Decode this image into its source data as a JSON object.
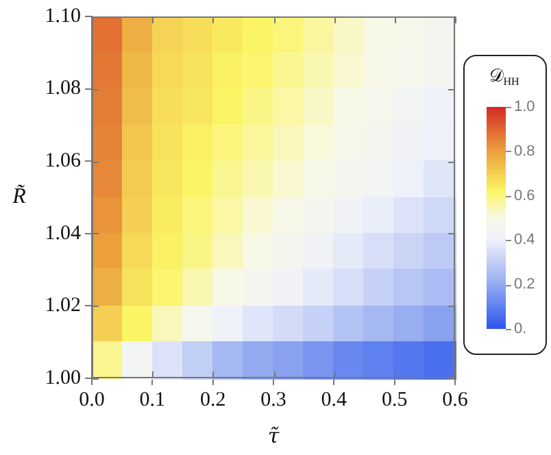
{
  "chart_data": {
    "type": "heatmap",
    "xlabel": "τ̃",
    "ylabel": "R̃",
    "clabel": "𝒟$_{HH}$",
    "x": [
      0.025,
      0.075,
      0.125,
      0.175,
      0.225,
      0.275,
      0.325,
      0.375,
      0.425,
      0.475,
      0.525,
      0.575
    ],
    "y": [
      1.095,
      1.085,
      1.075,
      1.065,
      1.055,
      1.045,
      1.035,
      1.025,
      1.015,
      1.005
    ],
    "xlim": [
      0,
      0.6
    ],
    "ylim": [
      1.0,
      1.1
    ],
    "xticks": [
      {
        "value": 0,
        "label": "0.0"
      },
      0.1,
      0.2,
      0.3,
      0.4,
      0.5,
      0.6
    ],
    "yticks": [
      {
        "value": 1.0,
        "label": "1.00"
      },
      1.02,
      1.04,
      1.06,
      1.08,
      {
        "value": 1.1,
        "label": "1.10"
      }
    ],
    "clim": [
      0,
      1
    ],
    "cticks": [
      {
        "value": 0,
        "label": "0."
      },
      0.2,
      0.4,
      0.6,
      0.8,
      {
        "value": 1,
        "label": "1.0"
      }
    ],
    "cells": [
      [
        0.88,
        0.77,
        0.69,
        0.67,
        0.645,
        0.62,
        0.6,
        0.565,
        0.53,
        0.5,
        0.48,
        0.46
      ],
      [
        0.87,
        0.75,
        0.68,
        0.66,
        0.63,
        0.61,
        0.58,
        0.55,
        0.52,
        0.49,
        0.47,
        0.45
      ],
      [
        0.86,
        0.74,
        0.67,
        0.65,
        0.62,
        0.59,
        0.56,
        0.53,
        0.5,
        0.47,
        0.43,
        0.41
      ],
      [
        0.85,
        0.72,
        0.66,
        0.63,
        0.6,
        0.57,
        0.54,
        0.51,
        0.48,
        0.45,
        0.42,
        0.4
      ],
      [
        0.84,
        0.71,
        0.65,
        0.62,
        0.58,
        0.55,
        0.52,
        0.49,
        0.46,
        0.43,
        0.4,
        0.37
      ],
      [
        0.82,
        0.7,
        0.64,
        0.6,
        0.56,
        0.52,
        0.49,
        0.46,
        0.42,
        0.39,
        0.36,
        0.33
      ],
      [
        0.8,
        0.68,
        0.63,
        0.59,
        0.54,
        0.5,
        0.46,
        0.42,
        0.38,
        0.35,
        0.32,
        0.29
      ],
      [
        0.77,
        0.66,
        0.61,
        0.55,
        0.5,
        0.46,
        0.42,
        0.38,
        0.35,
        0.31,
        0.28,
        0.25
      ],
      [
        0.7,
        0.62,
        0.54,
        0.47,
        0.41,
        0.37,
        0.34,
        0.31,
        0.27,
        0.24,
        0.21,
        0.18
      ],
      [
        0.58,
        0.44,
        0.36,
        0.3,
        0.24,
        0.2,
        0.18,
        0.15,
        0.12,
        0.1,
        0.08,
        0.06
      ]
    ],
    "grid": false,
    "legend": false
  }
}
